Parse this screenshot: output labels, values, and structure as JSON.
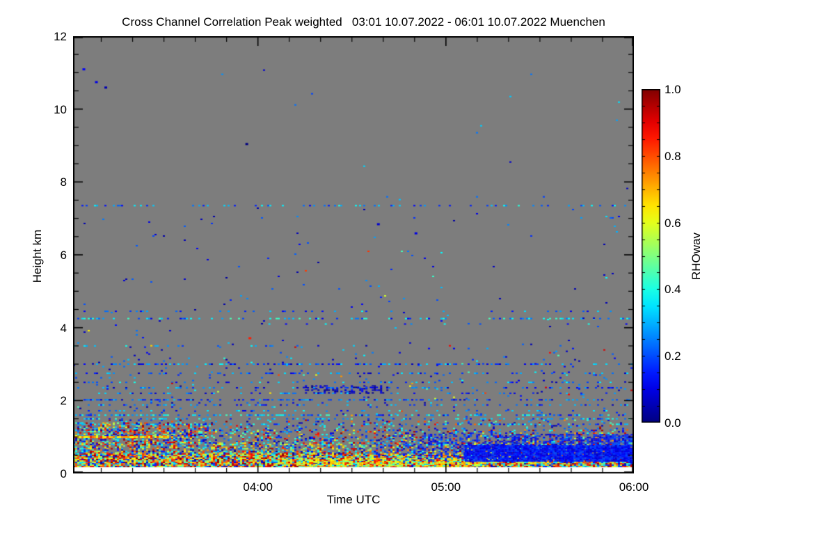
{
  "figure": {
    "background": "#ffffff"
  },
  "chart_data": {
    "type": "heatmap",
    "title": "Cross Channel Correlation Peak weighted   03:01 10.07.2022 - 06:01 10.07.2022 Muenchen",
    "xlabel": "Time UTC",
    "ylabel": "Height km",
    "x_axis": {
      "start_label": "03:01",
      "end_label": "06:01",
      "range_minutes": [
        0,
        179
      ],
      "ticks": [
        {
          "label": "04:00",
          "min": 59
        },
        {
          "label": "05:00",
          "min": 119
        },
        {
          "label": "06:00",
          "min": 179
        }
      ],
      "minor_first_min": 9,
      "minor_step_min": 10
    },
    "y_axis": {
      "range_km": [
        0,
        12
      ],
      "ticks": [
        0,
        2,
        4,
        6,
        8,
        10,
        12
      ],
      "minor_step_km": 0.5
    },
    "colorbar": {
      "label": "RHOwav",
      "range": [
        0.0,
        1.0
      ],
      "ticks": [
        {
          "label": "0.0",
          "v": 0.0
        },
        {
          "label": "0.2",
          "v": 0.2
        },
        {
          "label": "0.4",
          "v": 0.4
        },
        {
          "label": "0.6",
          "v": 0.6
        },
        {
          "label": "0.8",
          "v": 0.8
        },
        {
          "label": "1.0",
          "v": 1.0
        }
      ],
      "minor_step": 0.05,
      "colormap": "jet"
    },
    "no_data_color": "#7d7d7d",
    "below_min_color": "#ffffff",
    "h_min_data_km": 0.17,
    "render_seed": 1337,
    "features": [
      {
        "name": "surface-core",
        "t": [
          0,
          179
        ],
        "h": [
          0.17,
          0.55
        ],
        "density": 0.93,
        "cell": [
          3,
          2
        ],
        "vmix": [
          [
            0.72,
            1.0,
            0.33
          ],
          [
            0.5,
            0.72,
            0.32
          ],
          [
            0.27,
            0.48,
            0.19
          ],
          [
            0.03,
            0.25,
            0.16
          ]
        ]
      },
      {
        "name": "surface-upper",
        "t": [
          0,
          179
        ],
        "h": [
          0.55,
          0.85
        ],
        "density": 0.5,
        "cell": [
          3,
          2
        ],
        "coljitter": 0.5,
        "vmix": [
          [
            0.72,
            1.0,
            0.27
          ],
          [
            0.5,
            0.72,
            0.23
          ],
          [
            0.27,
            0.48,
            0.25
          ],
          [
            0.03,
            0.25,
            0.25
          ]
        ]
      },
      {
        "name": "layer-1km",
        "t": [
          0,
          179
        ],
        "h": [
          0.85,
          1.2
        ],
        "density": 0.26,
        "cell": [
          3,
          2
        ],
        "coljitter": 0.7,
        "vmix": [
          [
            0.72,
            1.0,
            0.22
          ],
          [
            0.5,
            0.72,
            0.13
          ],
          [
            0.27,
            0.48,
            0.28
          ],
          [
            0.03,
            0.25,
            0.37
          ]
        ]
      },
      {
        "name": "fringe-1.2-1.5km",
        "t": [
          0,
          179
        ],
        "h": [
          1.2,
          1.48
        ],
        "density": 0.12,
        "cell": [
          3,
          2
        ],
        "coljitter": 0.7,
        "vmix": [
          [
            0.72,
            1.0,
            0.15
          ],
          [
            0.27,
            0.48,
            0.35
          ],
          [
            0.03,
            0.25,
            0.5
          ]
        ]
      },
      {
        "name": "left-enhanced-block",
        "t": [
          0,
          42
        ],
        "h": [
          0.8,
          1.4
        ],
        "density": 0.35,
        "cell": [
          3,
          2
        ],
        "vmix": [
          [
            0.72,
            1.0,
            0.35
          ],
          [
            0.45,
            0.7,
            0.2
          ],
          [
            0.27,
            0.45,
            0.25
          ],
          [
            0.03,
            0.25,
            0.2
          ]
        ]
      },
      {
        "name": "orange-line-left-1km",
        "t": [
          0,
          33
        ],
        "h": [
          1.0,
          1.0
        ],
        "density": 0.85,
        "cell": [
          3,
          3
        ],
        "v": [
          0.58,
          0.85
        ]
      },
      {
        "name": "yellow-band",
        "t": [
          72,
          132
        ],
        "h": [
          0.17,
          0.42
        ],
        "density": 0.75,
        "cell": [
          3,
          2
        ],
        "vmix": [
          [
            0.5,
            0.72,
            0.72
          ],
          [
            0.72,
            0.95,
            0.16
          ],
          [
            0.3,
            0.45,
            0.12
          ]
        ]
      },
      {
        "name": "blue-low-correlation-field",
        "t": [
          92,
          179
        ],
        "h": [
          0.32,
          1.08
        ],
        "density": 0.6,
        "cell": [
          3,
          2
        ],
        "v": [
          0.07,
          0.22
        ],
        "ramp": true,
        "coljitter": 0.8
      },
      {
        "name": "blue-core",
        "t": [
          125,
          179
        ],
        "h": [
          0.35,
          0.78
        ],
        "density": 0.93,
        "cell": [
          3,
          2
        ],
        "v": [
          0.07,
          0.2
        ]
      },
      {
        "name": "blue-cluster-2.3km",
        "t": [
          74,
          100
        ],
        "h": [
          2.2,
          2.42
        ],
        "density": 0.4,
        "cell": [
          3,
          2
        ],
        "v": [
          0.0,
          0.14
        ],
        "coljitter": 0.9
      },
      {
        "name": "line-7.35km",
        "t": [
          0,
          179
        ],
        "h": [
          7.35,
          7.35
        ],
        "density": 0.32,
        "cell": [
          3,
          2
        ],
        "v": [
          0.12,
          0.42
        ]
      },
      {
        "name": "line-4.45km",
        "t": [
          0,
          179
        ],
        "h": [
          4.45,
          4.45
        ],
        "density": 0.1,
        "cell": [
          3,
          2
        ],
        "v": [
          0.1,
          0.4
        ]
      },
      {
        "name": "line-4.25km",
        "t": [
          0,
          179
        ],
        "h": [
          4.25,
          4.25
        ],
        "density": 0.28,
        "cell": [
          3,
          2
        ],
        "v": [
          0.1,
          0.45
        ]
      },
      {
        "name": "line-4.1km",
        "t": [
          55,
          179
        ],
        "h": [
          4.1,
          4.1
        ],
        "density": 0.08,
        "cell": [
          3,
          2
        ],
        "v": [
          0.1,
          0.4
        ]
      },
      {
        "name": "line-3.5km",
        "t": [
          0,
          70
        ],
        "h": [
          3.5,
          3.5
        ],
        "density": 0.2,
        "cell": [
          3,
          2
        ],
        "v": [
          0.08,
          0.4
        ]
      },
      {
        "name": "line-3.0km",
        "t": [
          0,
          179
        ],
        "h": [
          3.0,
          3.0
        ],
        "density": 0.38,
        "cell": [
          3,
          2
        ],
        "v": [
          0.05,
          0.38
        ]
      },
      {
        "name": "line-2.75km",
        "t": [
          0,
          179
        ],
        "h": [
          2.75,
          2.75
        ],
        "density": 0.26,
        "cell": [
          3,
          2
        ],
        "v": [
          0.05,
          0.35
        ]
      },
      {
        "name": "line-2.5km",
        "t": [
          0,
          179
        ],
        "h": [
          2.5,
          2.5
        ],
        "density": 0.2,
        "cell": [
          3,
          2
        ],
        "v": [
          0.05,
          0.4
        ]
      },
      {
        "name": "line-2.35km",
        "t": [
          0,
          179
        ],
        "h": [
          2.35,
          2.35
        ],
        "density": 0.26,
        "cell": [
          3,
          2
        ],
        "v": [
          0.05,
          0.35
        ]
      },
      {
        "name": "line-2.2km",
        "t": [
          0,
          179
        ],
        "h": [
          2.2,
          2.2
        ],
        "density": 0.2,
        "cell": [
          3,
          2
        ],
        "v": [
          0.05,
          0.35
        ]
      },
      {
        "name": "line-2.0km",
        "t": [
          0,
          179
        ],
        "h": [
          2.02,
          2.02
        ],
        "density": 0.48,
        "cell": [
          3,
          2
        ],
        "v": [
          0.04,
          0.32
        ]
      },
      {
        "name": "line-1.88km",
        "t": [
          0,
          179
        ],
        "h": [
          1.88,
          1.88
        ],
        "density": 0.28,
        "cell": [
          3,
          2
        ],
        "v": [
          0.05,
          0.35
        ]
      },
      {
        "name": "line-1.72km",
        "t": [
          0,
          179
        ],
        "h": [
          1.72,
          1.72
        ],
        "density": 0.15,
        "cell": [
          3,
          2
        ],
        "v": [
          0.08,
          0.4
        ]
      },
      {
        "name": "line-1.6km",
        "t": [
          0,
          179
        ],
        "h": [
          1.6,
          1.6
        ],
        "density": 0.42,
        "cell": [
          3,
          2
        ],
        "v": [
          0.1,
          0.45
        ]
      },
      {
        "name": "line-1.5km",
        "t": [
          0,
          179
        ],
        "h": [
          1.5,
          1.5
        ],
        "density": 0.38,
        "cell": [
          3,
          2
        ],
        "v": [
          0.12,
          0.45
        ]
      },
      {
        "name": "line-1.35km",
        "t": [
          0,
          179
        ],
        "h": [
          1.35,
          1.35
        ],
        "density": 0.28,
        "cell": [
          3,
          2
        ],
        "v": [
          0.1,
          0.42
        ]
      },
      {
        "name": "sparse-low-mid",
        "t": [
          0,
          179
        ],
        "h": [
          1.5,
          3.6
        ],
        "density": 0.015,
        "cell": [
          3,
          2
        ],
        "vmix": [
          [
            0.03,
            0.3,
            0.8
          ],
          [
            0.3,
            0.45,
            0.12
          ],
          [
            0.55,
            0.95,
            0.08
          ]
        ]
      },
      {
        "name": "sparse-mid",
        "t": [
          0,
          179
        ],
        "h": [
          3.6,
          7.3
        ],
        "density": 0.004,
        "cell": [
          3,
          2
        ],
        "vmix": [
          [
            0.03,
            0.3,
            0.85
          ],
          [
            0.3,
            0.45,
            0.1
          ],
          [
            0.55,
            0.95,
            0.05
          ]
        ]
      },
      {
        "name": "sparse-upper",
        "t": [
          0,
          179
        ],
        "h": [
          7.4,
          11.7
        ],
        "density": 0.0004,
        "cell": [
          3,
          2
        ],
        "v": [
          0.05,
          0.35
        ]
      }
    ],
    "dots": [
      {
        "t": 3,
        "h": 11.1,
        "v": 0.12
      },
      {
        "t": 7,
        "h": 10.75,
        "v": 0.1
      },
      {
        "t": 10,
        "h": 10.6,
        "v": 0.05
      },
      {
        "t": 55,
        "h": 9.05,
        "v": 0.0
      },
      {
        "t": 97,
        "h": 6.85,
        "v": 0.08
      },
      {
        "t": 109,
        "h": 6.6,
        "v": 0.1
      },
      {
        "t": 56,
        "h": 3.72,
        "v": 0.85
      }
    ]
  }
}
